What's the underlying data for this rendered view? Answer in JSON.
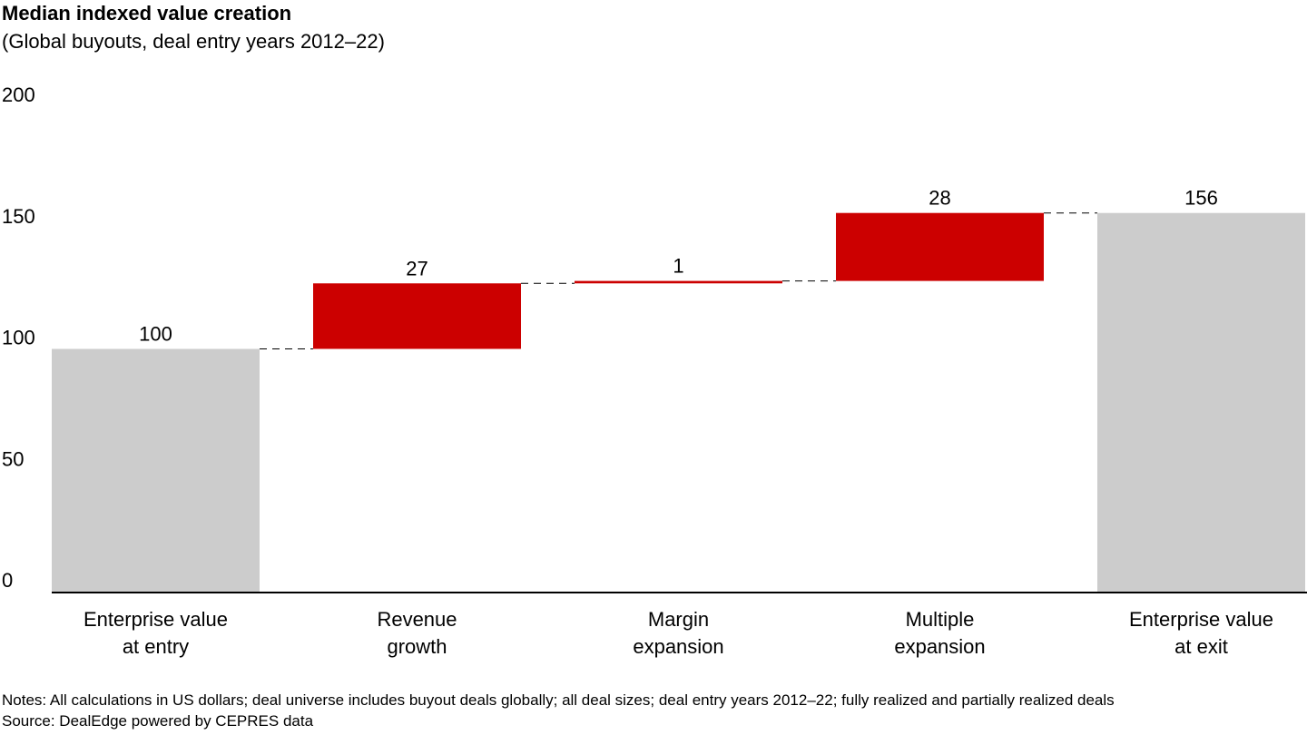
{
  "chart_data": {
    "type": "waterfall",
    "title": "Median indexed value creation",
    "subtitle": "(Global buyouts, deal entry years 2012–22)",
    "categories": [
      [
        "Enterprise value",
        "at entry"
      ],
      [
        "Revenue",
        "growth"
      ],
      [
        "Margin",
        "expansion"
      ],
      [
        "Multiple",
        "expansion"
      ],
      [
        "Enterprise value",
        "at exit"
      ]
    ],
    "steps": [
      {
        "kind": "total",
        "value": 100,
        "label": "100"
      },
      {
        "kind": "delta",
        "value": 27,
        "label": "27"
      },
      {
        "kind": "delta",
        "value": 1,
        "label": "1"
      },
      {
        "kind": "delta",
        "value": 28,
        "label": "28"
      },
      {
        "kind": "total",
        "value": 156,
        "label": "156"
      }
    ],
    "yticks": [
      0,
      50,
      100,
      150,
      200
    ],
    "ylim": [
      0,
      200
    ],
    "xlabel": "",
    "ylabel": "",
    "grid": false,
    "colors": {
      "total": "#cccccc",
      "delta": "#cc0000",
      "connector": "#000000",
      "axis": "#000000"
    }
  },
  "footer": {
    "notes": "Notes: All calculations in US dollars; deal universe includes buyout deals globally; all deal sizes; deal entry years 2012–22; fully realized and partially realized deals",
    "source": "Source: DealEdge powered by CEPRES data"
  }
}
